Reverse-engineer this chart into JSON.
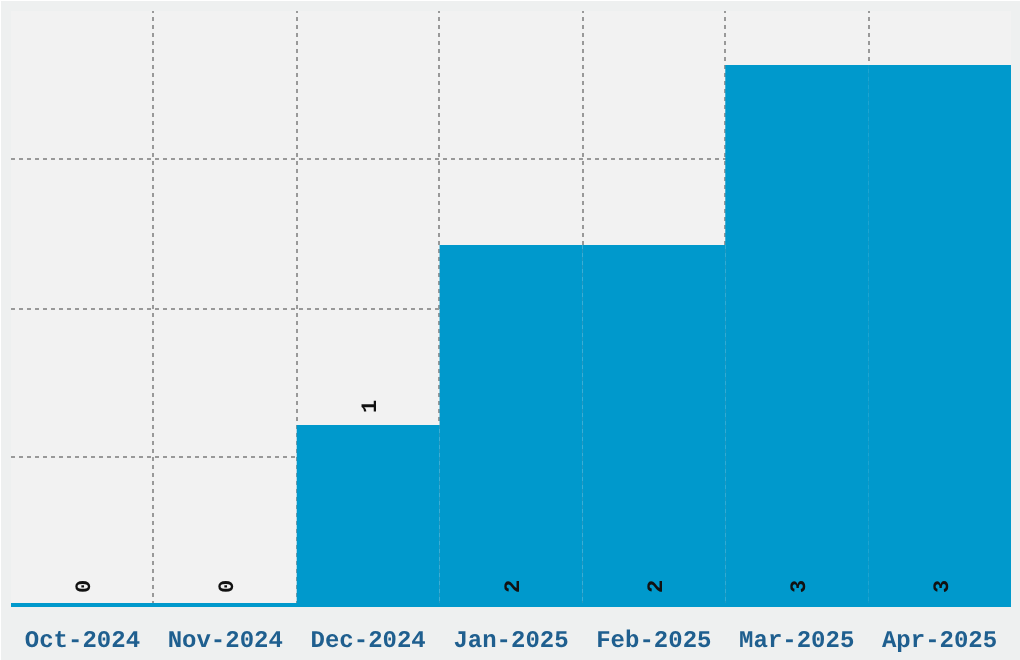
{
  "chart_data": {
    "type": "bar",
    "categories": [
      "Oct-2024",
      "Nov-2024",
      "Dec-2024",
      "Jan-2025",
      "Feb-2025",
      "Mar-2025",
      "Apr-2025"
    ],
    "values": [
      0,
      0,
      1,
      2,
      2,
      3,
      3
    ],
    "color": "#0099cc",
    "data_labels": true,
    "ylim": [
      0,
      3.3
    ],
    "yticks": [
      {
        "value": 0.825,
        "label": null
      },
      {
        "value": 1.65,
        "label": null
      },
      {
        "value": 2.475,
        "label": null
      }
    ],
    "grid": true,
    "tick_labels": "x"
  }
}
